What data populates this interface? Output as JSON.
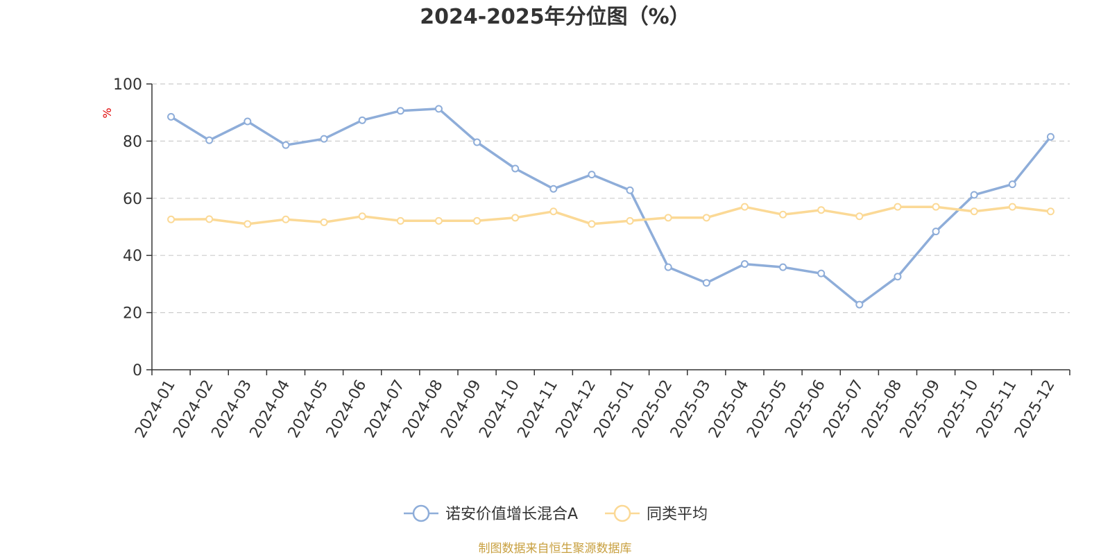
{
  "chart_data": {
    "type": "line",
    "title": "2024-2025年分位图（%）",
    "ylabel": "%",
    "xlabel": "",
    "ylim": [
      0,
      100
    ],
    "yticks": [
      0,
      20,
      40,
      60,
      80,
      100
    ],
    "grid": true,
    "legend_position": "bottom",
    "categories": [
      "2024-01",
      "2024-02",
      "2024-03",
      "2024-04",
      "2024-05",
      "2024-06",
      "2024-07",
      "2024-08",
      "2024-09",
      "2024-10",
      "2024-11",
      "2024-12",
      "2025-01",
      "2025-02",
      "2025-03",
      "2025-04",
      "2025-05",
      "2025-06",
      "2025-07",
      "2025-08",
      "2025-09",
      "2025-10",
      "2025-11",
      "2025-12"
    ],
    "series": [
      {
        "name": "诺安价值增长混合A",
        "color": "#8eadd9",
        "values": [
          88.5,
          80.3,
          86.9,
          78.6,
          80.8,
          87.3,
          90.6,
          91.3,
          79.6,
          70.4,
          63.3,
          68.3,
          62.8,
          35.9,
          30.4,
          37.0,
          35.9,
          33.7,
          22.8,
          32.6,
          48.4,
          61.2,
          64.9,
          81.5
        ]
      },
      {
        "name": "同类平均",
        "color": "#fbd996",
        "values": [
          52.6,
          52.7,
          51.0,
          52.6,
          51.6,
          53.7,
          52.1,
          52.1,
          52.1,
          53.2,
          55.4,
          51.0,
          52.1,
          53.2,
          53.2,
          57.0,
          54.3,
          55.9,
          53.7,
          57.0,
          57.0,
          55.4,
          57.0,
          55.4
        ]
      }
    ]
  },
  "footer": {
    "source": "制图数据来自恒生聚源数据库"
  },
  "colors": {
    "axis": "#333333",
    "grid": "#cccccc",
    "ylabel": "#e00000",
    "source": "#c8a040"
  }
}
